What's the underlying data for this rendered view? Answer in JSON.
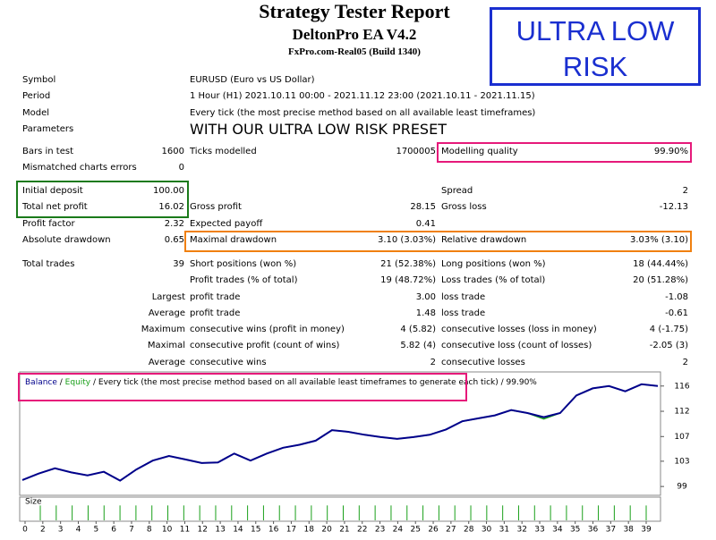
{
  "header": {
    "title": "Strategy Tester Report",
    "subtitle": "DeltonPro EA V4.2",
    "server": "FxPro.com-Real05 (Build 1340)"
  },
  "badge": "ULTRA LOW RISK",
  "info": [
    {
      "label": "Symbol",
      "value": "EURUSD (Euro vs US Dollar)"
    },
    {
      "label": "Period",
      "value": "1 Hour (H1) 2021.10.11 00:00 - 2021.11.12 23:00 (2021.10.11 - 2021.11.15)"
    },
    {
      "label": "Model",
      "value": "Every tick (the most precise method based on all available least timeframes)"
    },
    {
      "label": "Parameters",
      "value": "WITH OUR ULTRA LOW RISK PRESET"
    }
  ],
  "stats": [
    {
      "l1": "Bars in test",
      "v1": "1600",
      "l2": "Ticks modelled",
      "v2": "1700005",
      "l3": "Modelling quality",
      "v3": "99.90%"
    },
    {
      "l1": "Mismatched charts errors",
      "v1": "0"
    },
    {
      "l1": "Initial deposit",
      "v1": "100.00",
      "l3": "Spread",
      "v3": "2"
    },
    {
      "l1": "Total net profit",
      "v1": "16.02",
      "l2": "Gross profit",
      "v2": "28.15",
      "l3": "Gross loss",
      "v3": "-12.13"
    },
    {
      "l1": "Profit factor",
      "v1": "2.32",
      "l2": "Expected payoff",
      "v2": "0.41"
    },
    {
      "l1": "Absolute drawdown",
      "v1": "0.65",
      "l2": "Maximal drawdown",
      "v2": "3.10 (3.03%)",
      "l3": "Relative drawdown",
      "v3": "3.03% (3.10)"
    },
    {
      "l1": "Total trades",
      "v1": "39",
      "l2": "Short positions (won %)",
      "v2": "21 (52.38%)",
      "l3": "Long positions (won %)",
      "v3": "18 (44.44%)"
    },
    {
      "l2": "Profit trades (% of total)",
      "v2": "19 (48.72%)",
      "l3": "Loss trades (% of total)",
      "v3": "20 (51.28%)"
    },
    {
      "l1": "Largest",
      "l2": "profit trade",
      "v2": "3.00",
      "l3": "loss trade",
      "v3": "-1.08"
    },
    {
      "l1": "Average",
      "l2": "profit trade",
      "v2": "1.48",
      "l3": "loss trade",
      "v3": "-0.61"
    },
    {
      "l1": "Maximum",
      "l2": "consecutive wins (profit in money)",
      "v2": "4 (5.82)",
      "l3": "consecutive losses (loss in money)",
      "v3": "4 (-1.75)"
    },
    {
      "l1": "Maximal",
      "l2": "consecutive profit (count of wins)",
      "v2": "5.82 (4)",
      "l3": "consecutive loss (count of losses)",
      "v3": "-2.05 (3)"
    },
    {
      "l1": "Average",
      "l2": "consecutive wins",
      "v2": "2",
      "l3": "consecutive losses",
      "v3": "2"
    }
  ],
  "chart_data": {
    "type": "line",
    "separator": " / ",
    "description": "Every tick (the most precise method based on all available least timeframes to generate each tick)",
    "quality": "99.90%",
    "series": [
      {
        "name": "Balance",
        "color": "#00008b",
        "values": [
          100.0,
          101.1,
          102.0,
          101.3,
          100.8,
          101.4,
          99.9,
          101.8,
          103.3,
          104.1,
          103.5,
          102.9,
          103.0,
          104.5,
          103.3,
          104.5,
          105.5,
          106.0,
          106.7,
          108.5,
          108.2,
          107.7,
          107.3,
          107.0,
          107.3,
          107.7,
          108.6,
          110.0,
          110.5,
          111.0,
          111.9,
          111.4,
          110.7,
          111.4,
          114.4,
          115.6,
          116.0,
          115.1,
          116.3,
          116.0
        ]
      },
      {
        "name": "Equity",
        "color": "#1aa01a",
        "values": [
          100.0,
          101.1,
          102.0,
          101.3,
          100.8,
          101.4,
          99.9,
          101.8,
          103.3,
          104.1,
          103.5,
          102.9,
          103.0,
          104.5,
          103.3,
          104.5,
          105.5,
          106.0,
          106.7,
          108.5,
          108.2,
          107.7,
          107.3,
          107.0,
          107.3,
          107.7,
          108.6,
          110.0,
          110.5,
          111.0,
          111.9,
          111.4,
          110.4,
          111.4,
          114.4,
          115.6,
          116.0,
          115.1,
          116.3,
          116.0
        ]
      }
    ],
    "ylim": [
      97.4,
      118.4
    ],
    "yticks": [
      {
        "value": 98.9,
        "label": "99"
      },
      {
        "value": 103.2,
        "label": "103"
      },
      {
        "value": 107.4,
        "label": "107"
      },
      {
        "value": 111.7,
        "label": "112"
      },
      {
        "value": 116.0,
        "label": "116"
      }
    ],
    "xticks": [
      0,
      2,
      3,
      4,
      5,
      6,
      7,
      8,
      10,
      11,
      12,
      13,
      14,
      15,
      16,
      17,
      18,
      20,
      21,
      22,
      23,
      24,
      25,
      26,
      27,
      28,
      30,
      31,
      32,
      33,
      34,
      35,
      36,
      37,
      38,
      39
    ],
    "size": {
      "label": "Size",
      "color": "#1aa01a",
      "ylim": [
        0,
        0.012
      ],
      "values": [
        0.01,
        0.01,
        0.01,
        0.01,
        0.01,
        0.01,
        0.01,
        0.01,
        0.01,
        0.01,
        0.01,
        0.01,
        0.01,
        0.01,
        0.01,
        0.01,
        0.01,
        0.01,
        0.01,
        0.01,
        0.01,
        0.01,
        0.01,
        0.01,
        0.01,
        0.01,
        0.01,
        0.01,
        0.01,
        0.01,
        0.01,
        0.01,
        0.01,
        0.01,
        0.01,
        0.01,
        0.01,
        0.01,
        0.01
      ]
    }
  }
}
